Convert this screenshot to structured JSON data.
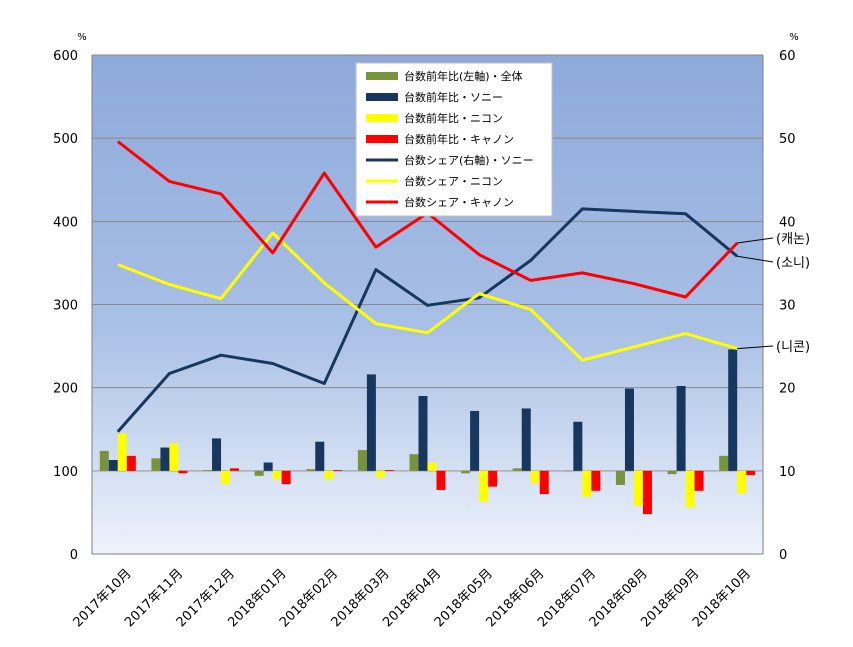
{
  "chart_data": {
    "type": "bar+line",
    "unit_left": "%",
    "unit_right": "%",
    "ylim_left": [
      0,
      600
    ],
    "yticks_left": [
      "0",
      "100",
      "200",
      "300",
      "400",
      "500",
      "600"
    ],
    "ylim_right": [
      0,
      60
    ],
    "yticks_right": [
      "0",
      "10",
      "20",
      "30",
      "40",
      "50",
      "60"
    ],
    "categories": [
      "2017年10月",
      "2017年11月",
      "2017年12月",
      "2018年01月",
      "2018年02月",
      "2018年03月",
      "2018年04月",
      "2018年05月",
      "2018年06月",
      "2018年07月",
      "2018年08月",
      "2018年09月",
      "2018年10月"
    ],
    "bar_series": [
      {
        "name": "台数前年比(左軸)・全体",
        "color": "#77933c",
        "values": [
          124,
          115,
          101,
          94,
          102,
          125,
          120,
          97,
          103,
          100,
          83,
          96,
          118
        ]
      },
      {
        "name": "台数前年比・ソニー",
        "color": "#17375e",
        "values": [
          113,
          128,
          139,
          110,
          135,
          216,
          190,
          172,
          175,
          159,
          199,
          202,
          246
        ]
      },
      {
        "name": "台数前年比・ニコン",
        "color": "#ffff00",
        "values": [
          145,
          133,
          84,
          90,
          90,
          92,
          110,
          63,
          85,
          69,
          58,
          56,
          73
        ]
      },
      {
        "name": "台数前年比・キャノン",
        "color": "#ff0000",
        "values": [
          118,
          97,
          103,
          84,
          101,
          101,
          77,
          81,
          72,
          76,
          48,
          76,
          95
        ]
      }
    ],
    "line_series": [
      {
        "name": "台数シェア(右軸)・ソニー",
        "color": "#17375e",
        "values": [
          14.7,
          21.7,
          23.9,
          22.9,
          20.5,
          34.2,
          29.9,
          30.8,
          35.3,
          41.5,
          41.2,
          40.9,
          35.8
        ]
      },
      {
        "name": "台数シェア・ニコン",
        "color": "#ffff00",
        "values": [
          34.8,
          32.4,
          30.7,
          38.6,
          32.6,
          27.7,
          26.6,
          31.3,
          29.4,
          23.3,
          24.9,
          26.5,
          24.7
        ]
      },
      {
        "name": "台数シェア・キャノン",
        "color": "#ff0000",
        "values": [
          49.6,
          44.8,
          43.3,
          36.2,
          45.8,
          36.9,
          41.0,
          36.0,
          32.9,
          33.8,
          32.5,
          30.9,
          37.4
        ]
      }
    ],
    "annotations": [
      "(캐논)",
      "(소니)",
      "(니콘)"
    ],
    "legend_position": "top-center"
  }
}
